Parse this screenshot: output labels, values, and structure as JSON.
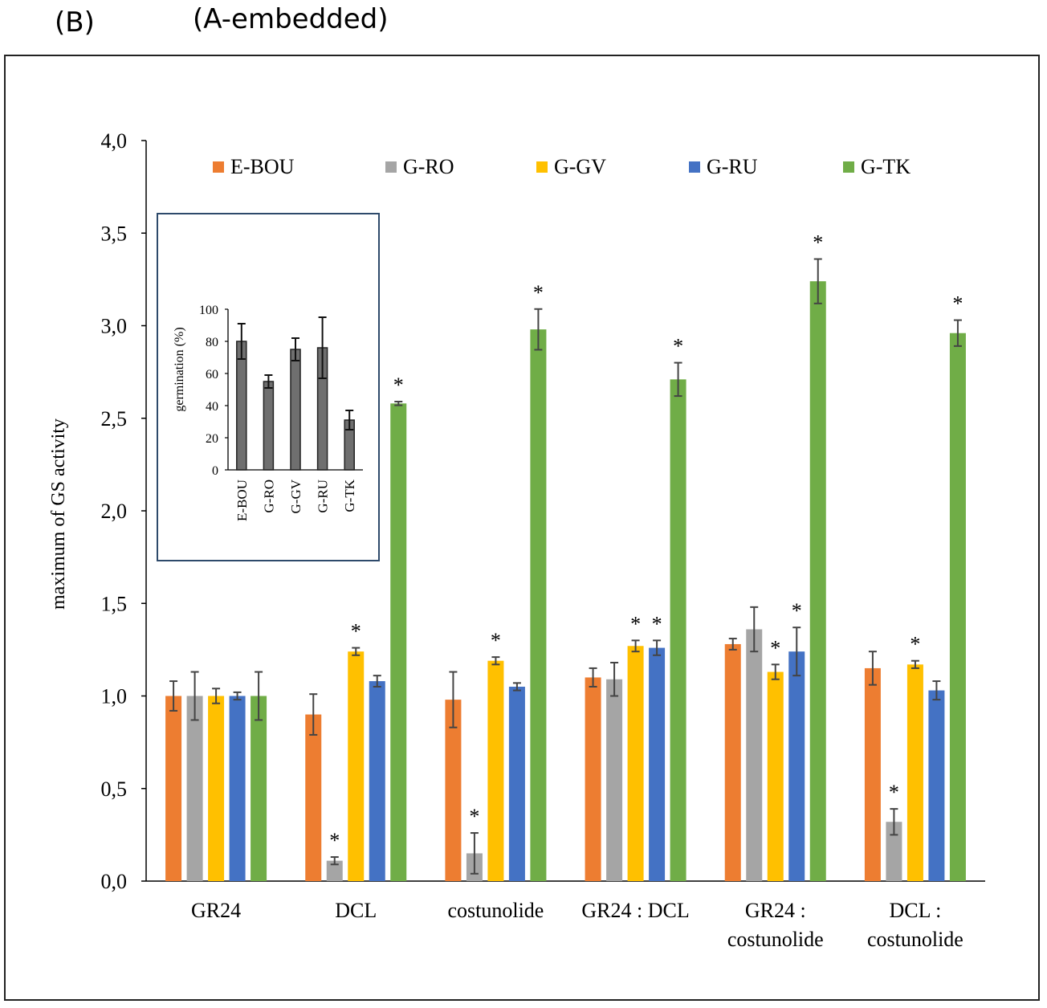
{
  "panel_label": "(B)",
  "panel_subtitle": "(A-embedded)",
  "colors": {
    "E-BOU": "#ED7D31",
    "G-RO": "#A5A5A5",
    "G-GV": "#FFC000",
    "G-RU": "#4472C4",
    "G-TK": "#70AD47",
    "inset_bar": "#6f6f6f",
    "inset_border": "#2E4A6B"
  },
  "chart_data": [
    {
      "type": "bar",
      "title": "",
      "xlabel": "",
      "ylabel": "maximum of GS activity",
      "ylim": [
        0,
        4
      ],
      "yticks": [
        "0,0",
        "0,5",
        "1,0",
        "1,5",
        "2,0",
        "2,5",
        "3,0",
        "3,5",
        "4,0"
      ],
      "categories": [
        [
          "GR24"
        ],
        [
          "DCL"
        ],
        [
          "costunolide"
        ],
        [
          "GR24 : DCL"
        ],
        [
          "GR24 :",
          "costunolide"
        ],
        [
          "DCL :",
          "costunolide"
        ]
      ],
      "legend": [
        "E-BOU",
        "G-RO",
        "G-GV",
        "G-RU",
        "G-TK"
      ],
      "legend_position": "top",
      "series": [
        {
          "name": "E-BOU",
          "values": [
            1.0,
            0.9,
            0.98,
            1.1,
            1.28,
            1.15
          ],
          "errors": [
            0.08,
            0.11,
            0.15,
            0.05,
            0.03,
            0.09
          ],
          "sig": [
            false,
            false,
            false,
            false,
            false,
            false
          ]
        },
        {
          "name": "G-RO",
          "values": [
            1.0,
            0.11,
            0.15,
            1.09,
            1.36,
            0.32
          ],
          "errors": [
            0.13,
            0.02,
            0.11,
            0.09,
            0.12,
            0.07
          ],
          "sig": [
            false,
            true,
            true,
            false,
            false,
            true
          ]
        },
        {
          "name": "G-GV",
          "values": [
            1.0,
            1.24,
            1.19,
            1.27,
            1.13,
            1.17
          ],
          "errors": [
            0.04,
            0.02,
            0.02,
            0.03,
            0.04,
            0.02
          ],
          "sig": [
            false,
            true,
            true,
            true,
            true,
            true
          ]
        },
        {
          "name": "G-RU",
          "values": [
            1.0,
            1.08,
            1.05,
            1.26,
            1.24,
            1.03
          ],
          "errors": [
            0.02,
            0.03,
            0.02,
            0.04,
            0.13,
            0.05
          ],
          "sig": [
            false,
            false,
            false,
            true,
            true,
            false
          ]
        },
        {
          "name": "G-TK",
          "values": [
            1.0,
            2.58,
            2.98,
            2.71,
            3.24,
            2.96
          ],
          "errors": [
            0.13,
            0.01,
            0.11,
            0.09,
            0.12,
            0.07
          ],
          "sig": [
            false,
            true,
            true,
            true,
            true,
            true
          ]
        }
      ],
      "significance_marker": "*"
    },
    {
      "type": "bar",
      "title": "",
      "xlabel": "",
      "ylabel": "germination (%)",
      "ylim": [
        0,
        100
      ],
      "yticks": [
        "0",
        "20",
        "40",
        "60",
        "80",
        "100"
      ],
      "categories": [
        "E-BOU",
        "G-RO",
        "G-GV",
        "G-RU",
        "G-TK"
      ],
      "values": [
        80,
        55,
        75,
        76,
        31
      ],
      "errors": [
        11,
        4,
        7,
        19,
        6
      ]
    }
  ]
}
